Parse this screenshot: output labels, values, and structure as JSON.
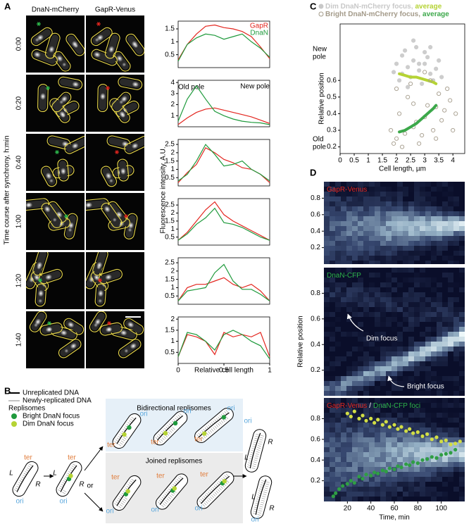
{
  "panel_a": {
    "label": "A",
    "columns": [
      "DnaN-mCherry",
      "GapR-Venus"
    ],
    "times": [
      "0:00",
      "0:20",
      "0:40",
      "1:00",
      "1:20",
      "1:40"
    ],
    "time_axis_label": "Time course after synchrony, h:min",
    "intensity_label": "Fluorescence intensity, A.U.",
    "length_label": "Relative cell length",
    "poles": [
      "Old pole",
      "New pole"
    ],
    "legend": [
      {
        "name": "GapR",
        "color": "#e3261f"
      },
      {
        "name": "DnaN",
        "color": "#1f9a3c"
      }
    ],
    "x": [
      0,
      0.1,
      0.2,
      0.3,
      0.4,
      0.5,
      0.6,
      0.7,
      0.8,
      0.9,
      1
    ],
    "xlim": [
      0,
      1
    ],
    "xticks": [
      0,
      0.5,
      1
    ],
    "plots": [
      {
        "ylim": [
          0,
          1.8
        ],
        "yticks": [
          0.5,
          1,
          1.5
        ],
        "gapr": [
          0.3,
          0.9,
          1.3,
          1.6,
          1.65,
          1.55,
          1.5,
          1.4,
          1.2,
          0.8,
          0.35
        ],
        "dnan": [
          0.25,
          0.9,
          1.15,
          1.3,
          1.25,
          1.1,
          1.2,
          1.3,
          1.0,
          0.75,
          0.4
        ]
      },
      {
        "ylim": [
          0,
          4.2
        ],
        "yticks": [
          1,
          2,
          3,
          4
        ],
        "gapr": [
          0.2,
          0.8,
          1.3,
          1.6,
          1.7,
          1.5,
          1.3,
          1.1,
          0.9,
          0.6,
          0.3
        ],
        "dnan": [
          0.5,
          2.5,
          3.7,
          2.5,
          1.4,
          1.0,
          0.7,
          0.5,
          0.4,
          0.35,
          0.2
        ]
      },
      {
        "ylim": [
          0,
          2.8
        ],
        "yticks": [
          0.5,
          1,
          1.5,
          2,
          2.5
        ],
        "gapr": [
          0.2,
          0.8,
          1.3,
          2.3,
          2.0,
          1.6,
          1.4,
          1.1,
          1.0,
          0.7,
          0.2
        ],
        "dnan": [
          0.3,
          0.7,
          1.5,
          2.5,
          1.9,
          1.2,
          1.3,
          1.5,
          1.0,
          0.7,
          0.3
        ]
      },
      {
        "ylim": [
          0,
          2.9
        ],
        "yticks": [
          0.5,
          1,
          1.5,
          2,
          2.5
        ],
        "gapr": [
          0.3,
          0.8,
          1.5,
          2.2,
          2.7,
          1.9,
          1.5,
          1.2,
          0.9,
          0.6,
          0.3
        ],
        "dnan": [
          0.3,
          0.7,
          1.3,
          1.7,
          2.3,
          1.4,
          1.3,
          1.1,
          0.8,
          0.5,
          0.3
        ]
      },
      {
        "ylim": [
          0,
          2.8
        ],
        "yticks": [
          0.5,
          1,
          1.5,
          2,
          2.5
        ],
        "gapr": [
          0.2,
          1.0,
          1.2,
          1.2,
          1.4,
          1.6,
          1.2,
          1.0,
          1.2,
          0.8,
          0.2
        ],
        "dnan": [
          0.2,
          0.8,
          0.9,
          1.0,
          1.9,
          2.4,
          1.4,
          0.9,
          0.9,
          0.6,
          0.2
        ]
      },
      {
        "ylim": [
          0,
          2.1
        ],
        "yticks": [
          0.5,
          1,
          1.5,
          2
        ],
        "gapr": [
          0.3,
          1.3,
          1.2,
          1.0,
          0.4,
          1.4,
          1.2,
          1.3,
          1.2,
          1.4,
          0.3
        ],
        "dnan": [
          0.3,
          1.4,
          1.3,
          1.0,
          0.6,
          1.3,
          1.5,
          1.3,
          1.0,
          0.8,
          0.2
        ]
      }
    ]
  },
  "panel_b": {
    "label": "B",
    "legend": [
      "Unreplicated DNA",
      "Newly-replicated DNA",
      "Replisomes",
      "Bright DnaN focus",
      "Dim DnaN focus"
    ],
    "bidirectional": "Bidirectional replisomes",
    "joined": "Joined replisomes",
    "or": "or",
    "ter": "ter",
    "ori": "ori",
    "L": "L",
    "R": "R"
  },
  "panel_c": {
    "label": "C",
    "y_label": "Relative position",
    "x_label": "Cell length, µm",
    "new_pole": [
      "New",
      "pole"
    ],
    "old_pole": [
      "Old",
      "pole"
    ],
    "xlim": [
      0,
      4.42
    ],
    "xticks": [
      0,
      0.5,
      1,
      1.5,
      2,
      2.5,
      3,
      3.5,
      4
    ],
    "ylim": [
      0.16,
      0.94
    ],
    "yticks": [
      0.2,
      0.3,
      0.4,
      0.5,
      0.6
    ],
    "series": [
      {
        "name": "Dim DnaN-mCherry focus,",
        "color": "#c8c8c8",
        "x": [
          2.0,
          2.2,
          2.4,
          2.6,
          2.8,
          3.0,
          3.2,
          3.4,
          3.6,
          2.1,
          2.3,
          2.5,
          2.7,
          2.9,
          3.1,
          3.3,
          1.9,
          2.6,
          3.0,
          2.4,
          2.8,
          3.5,
          2.2,
          3.2
        ],
        "y": [
          0.7,
          0.75,
          0.68,
          0.72,
          0.66,
          0.7,
          0.64,
          0.67,
          0.62,
          0.6,
          0.78,
          0.62,
          0.8,
          0.58,
          0.74,
          0.6,
          0.65,
          0.84,
          0.77,
          0.56,
          0.7,
          0.72,
          0.64,
          0.8
        ]
      },
      {
        "name": "average",
        "color": "#b5d334",
        "x": [
          2.1,
          2.3,
          2.5,
          2.7,
          2.9,
          3.1,
          3.3,
          3.4
        ],
        "y": [
          0.64,
          0.63,
          0.62,
          0.62,
          0.61,
          0.6,
          0.59,
          0.58
        ]
      },
      {
        "name": "Bright DnaN-mCherry focus,",
        "color": "#a39a89",
        "x": [
          1.8,
          2.0,
          2.1,
          2.3,
          2.4,
          2.6,
          2.8,
          3.0,
          3.1,
          3.3,
          3.5,
          3.7,
          3.9,
          4.1,
          2.2,
          2.5,
          2.7,
          2.9,
          3.2,
          3.4,
          3.6,
          3.8,
          4.0,
          2.0,
          2.6,
          3.0,
          3.4,
          1.9
        ],
        "y": [
          0.3,
          0.25,
          0.4,
          0.28,
          0.5,
          0.32,
          0.22,
          0.38,
          0.45,
          0.3,
          0.52,
          0.42,
          0.48,
          0.4,
          0.2,
          0.58,
          0.35,
          0.27,
          0.6,
          0.44,
          0.36,
          0.55,
          0.3,
          0.55,
          0.46,
          0.65,
          0.25,
          0.22
        ]
      },
      {
        "name": "average",
        "color": "#3ca84a",
        "x": [
          2.1,
          2.3,
          2.5,
          2.7,
          2.9,
          3.1,
          3.3,
          3.4
        ],
        "y": [
          0.29,
          0.3,
          0.32,
          0.34,
          0.37,
          0.4,
          0.43,
          0.45
        ]
      }
    ]
  },
  "panel_d": {
    "label": "D",
    "y_label": "Relative position",
    "x_label": "Time, min",
    "xlim": [
      0,
      120
    ],
    "xticks": [
      20,
      40,
      60,
      80,
      100
    ],
    "ylim": [
      0,
      1
    ],
    "yticks": [
      0.2,
      0.4,
      0.6,
      0.8
    ],
    "maps": [
      {
        "title": [
          {
            "text": "GapR-Venus",
            "color": "#e3261f"
          }
        ]
      },
      {
        "title": [
          {
            "text": "DnaN-CFP",
            "color": "#2db34a"
          }
        ],
        "notes": [
          "Dim focus",
          "Bright focus"
        ]
      },
      {
        "title": [
          {
            "text": "GapR-Venus",
            "color": "#e3261f"
          },
          {
            "text": "/",
            "color": "#ffffff"
          },
          {
            "text": "DnaN-CFP foci",
            "color": "#2db34a"
          }
        ]
      }
    ],
    "foci": [
      {
        "color": "#d2de45",
        "x": [
          20,
          23,
          26,
          30,
          33,
          36,
          40,
          43,
          46,
          50,
          53,
          56,
          60,
          63,
          66,
          70,
          73,
          76,
          80,
          84,
          88,
          92,
          96,
          100,
          104,
          108,
          112,
          116
        ],
        "y": [
          0.85,
          0.82,
          0.87,
          0.8,
          0.83,
          0.78,
          0.8,
          0.76,
          0.79,
          0.74,
          0.77,
          0.72,
          0.74,
          0.7,
          0.72,
          0.68,
          0.7,
          0.66,
          0.67,
          0.63,
          0.65,
          0.6,
          0.62,
          0.58,
          0.59,
          0.55,
          0.56,
          0.58
        ]
      },
      {
        "color": "#2f9e44",
        "x": [
          8,
          10,
          13,
          16,
          20,
          23,
          26,
          30,
          33,
          36,
          40,
          43,
          46,
          50,
          53,
          56,
          60,
          63,
          66,
          70,
          73,
          76,
          80,
          84,
          88,
          92,
          96,
          100,
          104,
          108,
          112
        ],
        "y": [
          0.05,
          0.08,
          0.12,
          0.15,
          0.17,
          0.2,
          0.18,
          0.24,
          0.22,
          0.26,
          0.25,
          0.28,
          0.27,
          0.3,
          0.29,
          0.32,
          0.31,
          0.34,
          0.33,
          0.36,
          0.35,
          0.38,
          0.37,
          0.4,
          0.41,
          0.43,
          0.42,
          0.45,
          0.46,
          0.47,
          0.5
        ]
      }
    ]
  }
}
